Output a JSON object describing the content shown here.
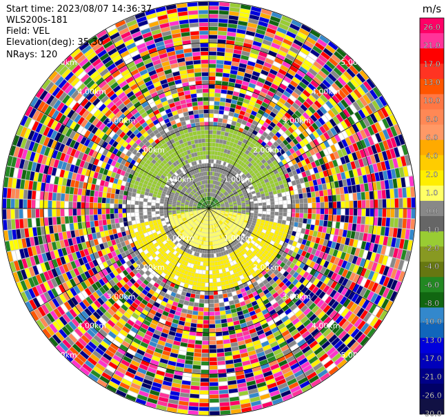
{
  "header": {
    "start_time": "Start time: 2023/08/07 14:36:37",
    "instrument": "WLS200s-181",
    "field": "Field: VEL",
    "elevation": "Elevation(deg): 35.30",
    "nrays": "NRays: 120"
  },
  "colorbar": {
    "unit": "m/s",
    "ticks": [
      "26.0",
      "21.0",
      "17.0",
      "13.0",
      "10.0",
      "8.0",
      "6.0",
      "4.0",
      "2.0",
      "1.0",
      "0.0",
      "-1.0",
      "-2.0",
      "-4.0",
      "-6.0",
      "-8.0",
      "-10.0",
      "-13.0",
      "-17.0",
      "-21.0",
      "-26.0",
      "-30.0"
    ],
    "colors": [
      "#ff0066",
      "#ff3399",
      "#ff0000",
      "#ff3322",
      "#ff5500",
      "#ff7744",
      "#ff8855",
      "#ff9966",
      "#ffaa00",
      "#ffcc00",
      "#ffee00",
      "#ffff66",
      "#888888",
      "#666666",
      "#99cc33",
      "#889922",
      "#667711",
      "#228822",
      "#116611",
      "#3388cc",
      "#1166bb",
      "#0000dd",
      "#0000bb",
      "#000088",
      "#000066",
      "#111144"
    ]
  },
  "chart_data": {
    "type": "heatmap",
    "title": "",
    "field": "VEL",
    "unit": "m/s",
    "nrays": 120,
    "elevation_deg": 35.3,
    "range_rings_km": [
      1.0,
      2.0,
      3.0,
      4.0,
      5.0
    ],
    "range_ring_labels": [
      "1.00km",
      "2.00km",
      "3.00km",
      "4.00km",
      "5.00km"
    ],
    "max_range_km": 5.0,
    "spokes_deg": [
      0,
      30,
      60,
      90,
      120,
      150,
      180,
      210,
      240,
      270,
      300,
      330
    ],
    "colorbar_range": [
      -30.0,
      26.0
    ],
    "regions": [
      {
        "range_km": [
          0.0,
          0.4
        ],
        "sector": "north",
        "value_ms": -5.0
      },
      {
        "range_km": [
          0.0,
          1.0
        ],
        "sector": "north",
        "value_ms": -0.5
      },
      {
        "range_km": [
          0.0,
          1.0
        ],
        "sector": "south",
        "value_ms": 3.0
      },
      {
        "range_km": [
          1.0,
          2.0
        ],
        "sector": "north",
        "value_ms": -3.0
      },
      {
        "range_km": [
          1.0,
          2.0
        ],
        "sector": "south",
        "value_ms": 3.0
      },
      {
        "range_km": [
          2.0,
          2.4
        ],
        "sector": "all",
        "value_ms": "noisy"
      },
      {
        "range_km": [
          2.4,
          5.0
        ],
        "sector": "all",
        "value_ms": "noise"
      }
    ],
    "grid": true
  }
}
